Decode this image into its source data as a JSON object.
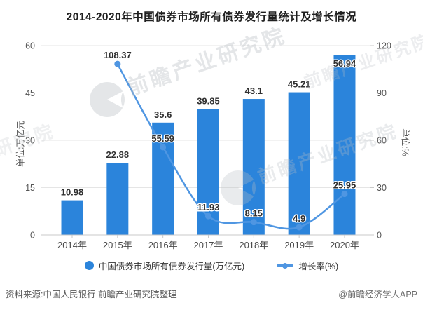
{
  "title": "2014-2020年中国债券市场所有债券发行量统计及增长情况",
  "chart_data": {
    "type": "combo-bar-line",
    "categories": [
      "2014年",
      "2015年",
      "2016年",
      "2017年",
      "2018年",
      "2019年",
      "2020年"
    ],
    "series": [
      {
        "name": "中国债券市场所有债券发行量(万亿元)",
        "type": "bar",
        "axis": "left",
        "color": "#2b84db",
        "values": [
          10.98,
          22.88,
          35.6,
          39.85,
          43.1,
          45.21,
          56.94
        ]
      },
      {
        "name": "增长率(%)",
        "type": "line",
        "axis": "right",
        "color": "#4f96e2",
        "values": [
          null,
          108.37,
          55.59,
          11.93,
          8.15,
          4.9,
          25.95
        ]
      }
    ],
    "left_axis": {
      "unit_label": "单位:万亿元",
      "ticks": [
        0,
        15,
        30,
        45,
        60
      ],
      "range": [
        0,
        60
      ]
    },
    "right_axis": {
      "unit_label": "单位:%",
      "ticks": [
        0,
        30,
        60,
        90,
        120
      ],
      "range": [
        0,
        120
      ]
    },
    "grid": true,
    "legend_position": "bottom"
  },
  "footer": {
    "source": "资料来源:中国人民银行 前瞻产业研究院整理",
    "credit": "@前瞻经济学人APP"
  },
  "watermark": {
    "text": "前瞻产业研究院"
  },
  "colors": {
    "bar": "#2b84db",
    "line": "#4f96e2",
    "title_text": "#1f1f1f",
    "grid": "#e5e5e5",
    "axis": "#c9c9c9",
    "tick_text": "#555555",
    "label_text": "#303030",
    "footer_text": "#595959",
    "watermark": "#b9bec4"
  }
}
